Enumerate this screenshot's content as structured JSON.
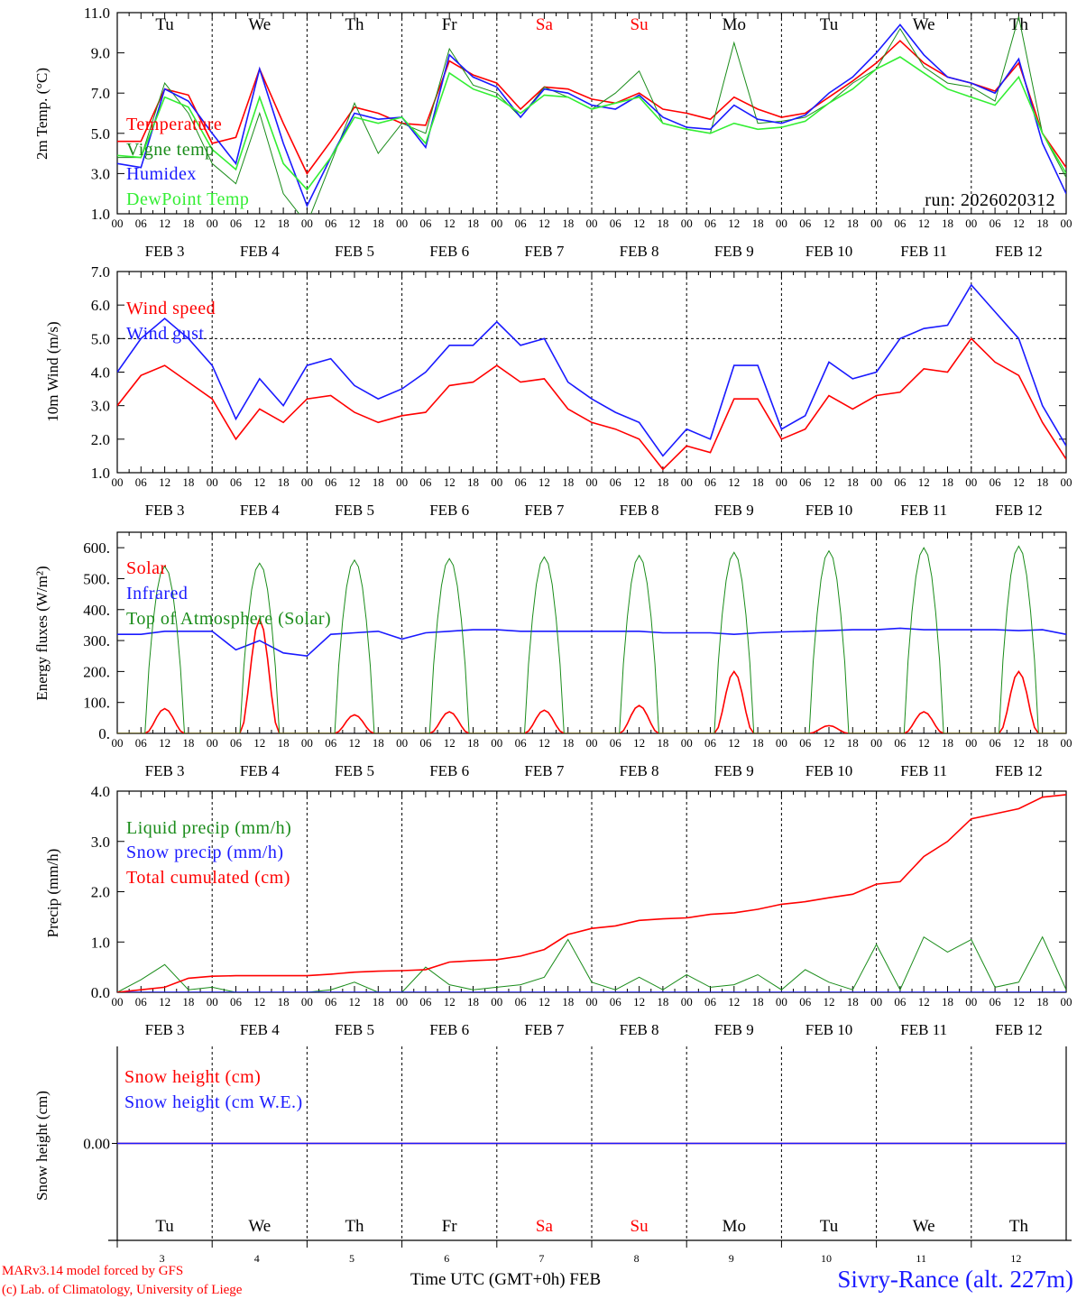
{
  "colors": {
    "red": "#ff0000",
    "green": "#1a8c1a",
    "blue": "#1a1aff",
    "lightgreen": "#33ee33",
    "weekend": "#ff0000"
  },
  "days": [
    "Tu",
    "We",
    "Th",
    "Fr",
    "Sa",
    "Su",
    "Mo",
    "Tu",
    "We",
    "Th"
  ],
  "weekend_flags": [
    false,
    false,
    false,
    false,
    true,
    true,
    false,
    false,
    false,
    false
  ],
  "dates": [
    "FEB  3",
    "FEB  4",
    "FEB  5",
    "FEB  6",
    "FEB  7",
    "FEB  8",
    "FEB  9",
    "FEB 10",
    "FEB 11",
    "FEB 12"
  ],
  "day_numbers": [
    "3",
    "4",
    "5",
    "6",
    "7",
    "8",
    "9",
    "10",
    "11",
    "12"
  ],
  "hour_labels": [
    "00",
    "06",
    "12",
    "18"
  ],
  "run_label": "run: 2026020312",
  "footer": {
    "model": "MARv3.14 model forced by GFS",
    "credit": "(c) Lab. of Climatology, University of Liege",
    "time_axis": "Time UTC (GMT+0h) FEB",
    "station": "Sivry-Rance (alt. 227m)"
  },
  "chart_data": [
    {
      "type": "line",
      "id": "temp",
      "ylabel": "2m Temp. (°C)",
      "ylim": [
        1,
        11
      ],
      "yticks": [
        "1.0",
        "3.0",
        "5.0",
        "7.0",
        "9.0",
        "11.0"
      ],
      "x_step_hours": 6,
      "series": [
        {
          "name": "Temperature",
          "color": "#ff0000",
          "values": [
            4.6,
            4.6,
            7.2,
            6.9,
            4.5,
            4.8,
            8.2,
            5.5,
            3.0,
            4.6,
            6.3,
            6.0,
            5.5,
            5.4,
            8.6,
            7.9,
            7.5,
            6.2,
            7.3,
            7.2,
            6.7,
            6.5,
            7.0,
            6.2,
            6.0,
            5.7,
            6.8,
            6.2,
            5.8,
            6.0,
            6.8,
            7.6,
            8.5,
            9.6,
            8.5,
            7.8,
            7.5,
            7.1,
            8.5,
            5.0,
            3.3
          ]
        },
        {
          "name": "Vigne temp",
          "color": "#1a8c1a",
          "values": [
            3.8,
            3.8,
            7.5,
            6.0,
            3.5,
            2.5,
            6.0,
            2.0,
            0.5,
            3.5,
            6.5,
            4.0,
            5.5,
            5.0,
            9.2,
            7.4,
            7.0,
            5.8,
            7.3,
            6.8,
            6.2,
            7.0,
            8.1,
            5.5,
            5.2,
            5.0,
            9.5,
            5.5,
            5.6,
            5.8,
            6.5,
            7.5,
            8.2,
            10.2,
            8.3,
            7.5,
            7.3,
            6.6,
            10.8,
            5.0,
            2.8
          ]
        },
        {
          "name": "Humidex",
          "color": "#1a1aff",
          "values": [
            3.5,
            3.3,
            7.2,
            6.6,
            5.0,
            3.5,
            8.2,
            4.5,
            1.4,
            3.8,
            6.0,
            5.7,
            5.8,
            4.3,
            8.9,
            7.8,
            7.3,
            5.8,
            7.2,
            7.0,
            6.4,
            6.2,
            6.9,
            5.8,
            5.3,
            5.2,
            6.4,
            5.7,
            5.5,
            5.9,
            7.0,
            7.8,
            9.0,
            10.4,
            8.9,
            7.8,
            7.5,
            7.0,
            8.7,
            4.5,
            2.0
          ]
        },
        {
          "name": "DewPoint Temp",
          "color": "#33ee33",
          "values": [
            3.9,
            3.8,
            6.8,
            6.3,
            4.2,
            3.2,
            6.8,
            3.5,
            2.2,
            3.8,
            5.8,
            5.5,
            5.8,
            4.5,
            8.0,
            7.2,
            6.8,
            6.0,
            6.9,
            6.8,
            6.2,
            6.5,
            6.8,
            5.5,
            5.2,
            5.0,
            5.5,
            5.2,
            5.3,
            5.6,
            6.5,
            7.2,
            8.2,
            8.8,
            8.0,
            7.2,
            6.8,
            6.4,
            7.8,
            5.0,
            3.0
          ]
        }
      ]
    },
    {
      "type": "line",
      "id": "wind",
      "ylabel": "10m Wind (m/s)",
      "ylim": [
        1,
        7
      ],
      "yticks": [
        "1.0",
        "2.0",
        "3.0",
        "4.0",
        "5.0",
        "6.0",
        "7.0"
      ],
      "reference_line": 5.0,
      "x_step_hours": 6,
      "series": [
        {
          "name": "Wind speed",
          "color": "#ff0000",
          "values": [
            3.0,
            3.9,
            4.2,
            3.7,
            3.2,
            2.0,
            2.9,
            2.5,
            3.2,
            3.3,
            2.8,
            2.5,
            2.7,
            2.8,
            3.6,
            3.7,
            4.2,
            3.7,
            3.8,
            2.9,
            2.5,
            2.3,
            2.0,
            1.1,
            1.8,
            1.6,
            3.2,
            3.2,
            2.0,
            2.3,
            3.3,
            2.9,
            3.3,
            3.4,
            4.1,
            4.0,
            5.0,
            4.3,
            3.9,
            2.5,
            1.4
          ]
        },
        {
          "name": "Wind gust",
          "color": "#1a1aff",
          "values": [
            4.0,
            5.0,
            5.6,
            5.0,
            4.2,
            2.6,
            3.8,
            3.0,
            4.2,
            4.4,
            3.6,
            3.2,
            3.5,
            4.0,
            4.8,
            4.8,
            5.5,
            4.8,
            5.0,
            3.7,
            3.2,
            2.8,
            2.5,
            1.5,
            2.3,
            2.0,
            4.2,
            4.2,
            2.3,
            2.7,
            4.3,
            3.8,
            4.0,
            5.0,
            5.3,
            5.4,
            6.6,
            5.8,
            5.0,
            3.0,
            1.8
          ]
        }
      ]
    },
    {
      "type": "line",
      "id": "energy",
      "ylabel": "Energy fluxes (W/m²)",
      "ylim": [
        0,
        650
      ],
      "yticks": [
        "0.",
        "100.",
        "200.",
        "300.",
        "400.",
        "500.",
        "600."
      ],
      "series": [
        {
          "name": "Solar",
          "color": "#ff0000",
          "daily_peaks": [
            80,
            370,
            60,
            70,
            75,
            90,
            200,
            25,
            70,
            200
          ]
        },
        {
          "name": "Infrared",
          "color": "#1a1aff",
          "x_step_hours": 6,
          "values": [
            320,
            320,
            330,
            330,
            330,
            270,
            300,
            260,
            250,
            320,
            325,
            330,
            305,
            325,
            330,
            335,
            335,
            330,
            330,
            330,
            330,
            330,
            330,
            325,
            325,
            325,
            320,
            325,
            328,
            330,
            332,
            335,
            335,
            340,
            335,
            335,
            335,
            335,
            332,
            335,
            320
          ]
        },
        {
          "name": "Top of Atmosphere (Solar)",
          "color": "#1a8c1a",
          "daily_peaks": [
            540,
            550,
            560,
            565,
            570,
            575,
            585,
            590,
            600,
            605
          ]
        }
      ]
    },
    {
      "type": "line",
      "id": "precip",
      "ylabel": "Precip (mm/h)",
      "ylim": [
        0,
        4
      ],
      "yticks": [
        "0.0",
        "1.0",
        "2.0",
        "3.0",
        "4.0"
      ],
      "x_step_hours": 6,
      "series": [
        {
          "name": "Liquid precip (mm/h)",
          "color": "#1a8c1a",
          "values": [
            0,
            0.25,
            0.55,
            0.05,
            0.1,
            0,
            0,
            0,
            0,
            0.05,
            0.2,
            0,
            0,
            0.5,
            0.15,
            0.05,
            0.1,
            0.15,
            0.3,
            1.05,
            0.2,
            0.05,
            0.3,
            0.05,
            0.35,
            0.1,
            0.15,
            0.35,
            0.05,
            0.45,
            0.2,
            0.05,
            0.95,
            0.05,
            1.1,
            0.8,
            1.05,
            0.1,
            0.2,
            1.1,
            0.05
          ]
        },
        {
          "name": "Snow precip (mm/h)",
          "color": "#1a1aff",
          "values": [
            0,
            0,
            0,
            0,
            0,
            0,
            0,
            0,
            0,
            0,
            0,
            0,
            0,
            0,
            0,
            0,
            0,
            0,
            0,
            0,
            0,
            0,
            0,
            0,
            0,
            0,
            0,
            0,
            0,
            0,
            0,
            0,
            0,
            0,
            0,
            0,
            0,
            0,
            0,
            0,
            0
          ]
        },
        {
          "name": "Total cumulated (cm)",
          "color": "#ff0000",
          "values": [
            0,
            0.05,
            0.1,
            0.28,
            0.32,
            0.33,
            0.33,
            0.33,
            0.33,
            0.36,
            0.4,
            0.42,
            0.43,
            0.45,
            0.6,
            0.63,
            0.65,
            0.72,
            0.85,
            1.15,
            1.27,
            1.32,
            1.43,
            1.46,
            1.48,
            1.55,
            1.58,
            1.65,
            1.75,
            1.8,
            1.88,
            1.95,
            2.15,
            2.2,
            2.7,
            3.0,
            3.45,
            3.55,
            3.65,
            3.88,
            3.93
          ]
        }
      ]
    },
    {
      "type": "line",
      "id": "snow",
      "ylabel": "Snow height (cm)",
      "ylim": [
        -1,
        1
      ],
      "yticks": [
        "0.00"
      ],
      "x_step_hours": 6,
      "series": [
        {
          "name": "Snow height (cm)",
          "color": "#ff0000",
          "values": [
            0,
            0
          ]
        },
        {
          "name": "Snow height (cm W.E.)",
          "color": "#1a1aff",
          "values": [
            0,
            0
          ]
        }
      ]
    }
  ]
}
